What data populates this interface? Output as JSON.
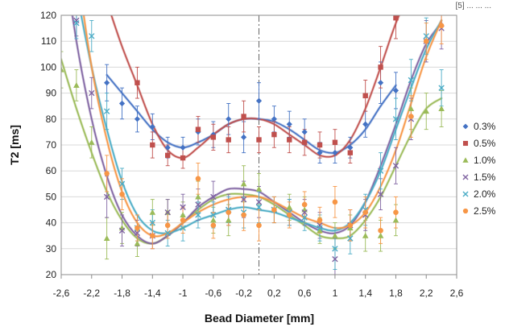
{
  "header_fragment": "[5] ... ... ...",
  "chart_data": {
    "type": "scatter",
    "title": "",
    "xlabel": "Bead Diameter [mm]",
    "ylabel": "T2 [ms]",
    "xlim": [
      -2.6,
      2.6
    ],
    "ylim": [
      20,
      120
    ],
    "x_ticks": [
      "-2,6",
      "-2,2",
      "-1,8",
      "-1,4",
      "-1",
      "-0,6",
      "-0,2",
      "0,2",
      "0,6",
      "1",
      "1,4",
      "1,8",
      "2,2",
      "2,6"
    ],
    "y_ticks": [
      "20",
      "30",
      "40",
      "50",
      "60",
      "70",
      "80",
      "90",
      "100",
      "110",
      "120"
    ],
    "grid": true,
    "center_line_x": 0,
    "legend_position": "right",
    "series": [
      {
        "name": "0.3%",
        "color": "#4472C4",
        "marker": "diamond",
        "points": [
          [
            -2.0,
            94,
            7
          ],
          [
            -1.8,
            86,
            6
          ],
          [
            -1.6,
            80,
            5
          ],
          [
            -1.4,
            77,
            5
          ],
          [
            -1.2,
            69,
            4
          ],
          [
            -1.0,
            69,
            4
          ],
          [
            -0.8,
            75,
            5
          ],
          [
            -0.6,
            74,
            5
          ],
          [
            -0.4,
            80,
            6
          ],
          [
            -0.2,
            73,
            6
          ],
          [
            0.0,
            87,
            7
          ],
          [
            0.2,
            80,
            5
          ],
          [
            0.4,
            78,
            5
          ],
          [
            0.6,
            75,
            5
          ],
          [
            0.8,
            67,
            4
          ],
          [
            1.0,
            67,
            4
          ],
          [
            1.2,
            69,
            4
          ],
          [
            1.4,
            78,
            5
          ],
          [
            1.6,
            94,
            8
          ],
          [
            1.8,
            91,
            7
          ]
        ],
        "fit": [
          [
            -2.0,
            97
          ],
          [
            -1.8,
            90
          ],
          [
            -1.6,
            83
          ],
          [
            -1.4,
            76
          ],
          [
            -1.2,
            71
          ],
          [
            -1.0,
            69
          ],
          [
            -0.8,
            71
          ],
          [
            -0.6,
            74
          ],
          [
            -0.4,
            78
          ],
          [
            -0.2,
            80
          ],
          [
            0.0,
            80
          ],
          [
            0.2,
            79
          ],
          [
            0.4,
            76
          ],
          [
            0.6,
            72
          ],
          [
            0.8,
            68
          ],
          [
            1.0,
            67
          ],
          [
            1.2,
            70
          ],
          [
            1.4,
            76
          ],
          [
            1.6,
            85
          ],
          [
            1.8,
            93
          ]
        ]
      },
      {
        "name": "0.5%",
        "color": "#C0504D",
        "marker": "square",
        "points": [
          [
            -1.6,
            94,
            6
          ],
          [
            -1.4,
            70,
            5
          ],
          [
            -1.2,
            66,
            4
          ],
          [
            -1.0,
            65,
            4
          ],
          [
            -0.8,
            76,
            5
          ],
          [
            -0.6,
            73,
            5
          ],
          [
            -0.4,
            72,
            5
          ],
          [
            -0.2,
            81,
            6
          ],
          [
            0.0,
            72,
            5
          ],
          [
            0.2,
            74,
            5
          ],
          [
            0.4,
            72,
            5
          ],
          [
            0.6,
            71,
            5
          ],
          [
            0.8,
            70,
            5
          ],
          [
            1.0,
            71,
            5
          ],
          [
            1.2,
            67,
            4
          ],
          [
            1.4,
            89,
            6
          ],
          [
            1.6,
            100,
            8
          ],
          [
            1.8,
            119,
            8
          ]
        ],
        "fit": [
          [
            -2.2,
            140
          ],
          [
            -2.0,
            125
          ],
          [
            -1.8,
            108
          ],
          [
            -1.6,
            93
          ],
          [
            -1.4,
            78
          ],
          [
            -1.2,
            68
          ],
          [
            -1.0,
            65
          ],
          [
            -0.8,
            69
          ],
          [
            -0.6,
            74
          ],
          [
            -0.4,
            78
          ],
          [
            -0.2,
            80
          ],
          [
            0.0,
            80
          ],
          [
            0.2,
            78
          ],
          [
            0.4,
            74
          ],
          [
            0.6,
            70
          ],
          [
            0.8,
            66
          ],
          [
            1.0,
            66
          ],
          [
            1.2,
            72
          ],
          [
            1.4,
            84
          ],
          [
            1.6,
            100
          ],
          [
            1.8,
            117
          ],
          [
            2.0,
            130
          ]
        ]
      },
      {
        "name": "1.0%",
        "color": "#9BBB59",
        "marker": "triangle",
        "points": [
          [
            -2.6,
            99,
            7
          ],
          [
            -2.4,
            93,
            6
          ],
          [
            -2.2,
            71,
            6
          ],
          [
            -2.0,
            34,
            8
          ],
          [
            -1.8,
            38,
            6
          ],
          [
            -1.6,
            32,
            5
          ],
          [
            -1.4,
            44,
            5
          ],
          [
            -1.2,
            44,
            5
          ],
          [
            -1.0,
            43,
            5
          ],
          [
            -0.8,
            50,
            6
          ],
          [
            -0.6,
            41,
            5
          ],
          [
            -0.4,
            41,
            6
          ],
          [
            -0.2,
            55,
            7
          ],
          [
            0.0,
            53,
            6
          ],
          [
            0.2,
            45,
            5
          ],
          [
            0.4,
            46,
            5
          ],
          [
            0.6,
            45,
            5
          ],
          [
            0.8,
            37,
            5
          ],
          [
            1.0,
            35,
            5
          ],
          [
            1.2,
            38,
            5
          ],
          [
            1.4,
            35,
            6
          ],
          [
            1.6,
            35,
            6
          ],
          [
            1.8,
            41,
            6
          ],
          [
            2.0,
            84,
            8
          ],
          [
            2.2,
            83,
            7
          ],
          [
            2.4,
            84,
            7
          ]
        ],
        "fit": [
          [
            -2.6,
            103
          ],
          [
            -2.4,
            84
          ],
          [
            -2.2,
            67
          ],
          [
            -2.0,
            52
          ],
          [
            -1.8,
            41
          ],
          [
            -1.6,
            34
          ],
          [
            -1.4,
            32
          ],
          [
            -1.2,
            35
          ],
          [
            -1.0,
            40
          ],
          [
            -0.8,
            45
          ],
          [
            -0.6,
            49
          ],
          [
            -0.4,
            51
          ],
          [
            -0.2,
            51
          ],
          [
            0.0,
            50
          ],
          [
            0.2,
            47
          ],
          [
            0.4,
            43
          ],
          [
            0.6,
            39
          ],
          [
            0.8,
            35
          ],
          [
            1.0,
            34
          ],
          [
            1.2,
            35
          ],
          [
            1.4,
            41
          ],
          [
            1.6,
            50
          ],
          [
            1.8,
            62
          ],
          [
            2.0,
            74
          ],
          [
            2.2,
            84
          ],
          [
            2.4,
            88
          ]
        ]
      },
      {
        "name": "1.5%",
        "color": "#8064A2",
        "marker": "x",
        "points": [
          [
            -2.4,
            118,
            6
          ],
          [
            -2.2,
            90,
            6
          ],
          [
            -2.0,
            50,
            8
          ],
          [
            -1.8,
            37,
            6
          ],
          [
            -1.6,
            36,
            5
          ],
          [
            -1.4,
            35,
            5
          ],
          [
            -1.2,
            44,
            5
          ],
          [
            -1.0,
            46,
            5
          ],
          [
            -0.8,
            47,
            6
          ],
          [
            -0.6,
            50,
            6
          ],
          [
            -0.4,
            45,
            6
          ],
          [
            -0.2,
            49,
            7
          ],
          [
            0.0,
            48,
            6
          ],
          [
            0.2,
            45,
            5
          ],
          [
            0.4,
            44,
            5
          ],
          [
            0.6,
            44,
            5
          ],
          [
            0.8,
            39,
            5
          ],
          [
            1.0,
            26,
            8
          ],
          [
            1.2,
            39,
            6
          ],
          [
            1.4,
            43,
            6
          ],
          [
            1.6,
            51,
            6
          ],
          [
            1.8,
            62,
            7
          ],
          [
            2.0,
            80,
            8
          ],
          [
            2.2,
            110,
            8
          ],
          [
            2.4,
            115,
            8
          ]
        ],
        "fit": [
          [
            -2.6,
            150
          ],
          [
            -2.4,
            110
          ],
          [
            -2.2,
            80
          ],
          [
            -2.0,
            58
          ],
          [
            -1.8,
            43
          ],
          [
            -1.6,
            35
          ],
          [
            -1.4,
            32
          ],
          [
            -1.2,
            35
          ],
          [
            -1.0,
            40
          ],
          [
            -0.8,
            46
          ],
          [
            -0.6,
            50
          ],
          [
            -0.4,
            53
          ],
          [
            -0.2,
            53
          ],
          [
            0.0,
            52
          ],
          [
            0.2,
            48
          ],
          [
            0.4,
            44
          ],
          [
            0.6,
            40
          ],
          [
            0.8,
            37
          ],
          [
            1.0,
            36
          ],
          [
            1.2,
            39
          ],
          [
            1.4,
            48
          ],
          [
            1.6,
            62
          ],
          [
            1.8,
            78
          ],
          [
            2.0,
            95
          ],
          [
            2.2,
            109
          ],
          [
            2.4,
            117
          ]
        ]
      },
      {
        "name": "2.0%",
        "color": "#4BACC6",
        "marker": "x",
        "points": [
          [
            -2.4,
            117,
            6
          ],
          [
            -2.2,
            112,
            6
          ],
          [
            -2.0,
            83,
            7
          ],
          [
            -1.8,
            55,
            6
          ],
          [
            -1.6,
            38,
            5
          ],
          [
            -1.4,
            40,
            5
          ],
          [
            -1.2,
            36,
            5
          ],
          [
            -1.0,
            38,
            5
          ],
          [
            -0.8,
            43,
            5
          ],
          [
            -0.6,
            43,
            5
          ],
          [
            -0.4,
            45,
            5
          ],
          [
            -0.2,
            44,
            6
          ],
          [
            0.0,
            46,
            6
          ],
          [
            0.2,
            45,
            5
          ],
          [
            0.4,
            44,
            5
          ],
          [
            0.6,
            42,
            5
          ],
          [
            0.8,
            38,
            5
          ],
          [
            1.0,
            30,
            8
          ],
          [
            1.2,
            34,
            6
          ],
          [
            1.4,
            45,
            6
          ],
          [
            1.6,
            60,
            7
          ],
          [
            1.8,
            80,
            8
          ],
          [
            2.0,
            95,
            8
          ],
          [
            2.2,
            112,
            7
          ],
          [
            2.4,
            92,
            7
          ]
        ],
        "fit": [
          [
            -2.6,
            165
          ],
          [
            -2.4,
            130
          ],
          [
            -2.2,
            100
          ],
          [
            -2.0,
            76
          ],
          [
            -1.8,
            56
          ],
          [
            -1.6,
            43
          ],
          [
            -1.4,
            37
          ],
          [
            -1.2,
            36
          ],
          [
            -1.0,
            38
          ],
          [
            -0.8,
            41
          ],
          [
            -0.6,
            43
          ],
          [
            -0.4,
            45
          ],
          [
            -0.2,
            46
          ],
          [
            0.0,
            45
          ],
          [
            0.2,
            44
          ],
          [
            0.4,
            42
          ],
          [
            0.6,
            40
          ],
          [
            0.8,
            38
          ],
          [
            1.0,
            37
          ],
          [
            1.2,
            40
          ],
          [
            1.4,
            48
          ],
          [
            1.6,
            60
          ],
          [
            1.8,
            76
          ],
          [
            2.0,
            92
          ],
          [
            2.2,
            107
          ],
          [
            2.4,
            118
          ]
        ]
      },
      {
        "name": "2.5%",
        "color": "#F79646",
        "marker": "circle",
        "points": [
          [
            -2.0,
            59,
            7
          ],
          [
            -1.8,
            51,
            6
          ],
          [
            -1.6,
            38,
            5
          ],
          [
            -1.4,
            35,
            5
          ],
          [
            -1.2,
            39,
            5
          ],
          [
            -1.0,
            41,
            5
          ],
          [
            -0.8,
            57,
            6
          ],
          [
            -0.6,
            39,
            5
          ],
          [
            -0.4,
            44,
            5
          ],
          [
            -0.2,
            43,
            6
          ],
          [
            0.0,
            39,
            6
          ],
          [
            0.2,
            45,
            5
          ],
          [
            0.4,
            43,
            5
          ],
          [
            0.6,
            47,
            5
          ],
          [
            0.8,
            41,
            5
          ],
          [
            1.0,
            48,
            6
          ],
          [
            1.2,
            39,
            6
          ],
          [
            1.4,
            44,
            6
          ],
          [
            1.6,
            37,
            5
          ],
          [
            1.8,
            44,
            6
          ],
          [
            2.0,
            81,
            8
          ],
          [
            2.2,
            110,
            7
          ],
          [
            2.4,
            116,
            7
          ]
        ],
        "fit": [
          [
            -2.4,
            140
          ],
          [
            -2.2,
            100
          ],
          [
            -2.0,
            72
          ],
          [
            -1.8,
            52
          ],
          [
            -1.6,
            40
          ],
          [
            -1.4,
            35
          ],
          [
            -1.2,
            36
          ],
          [
            -1.0,
            40
          ],
          [
            -0.8,
            44
          ],
          [
            -0.6,
            47
          ],
          [
            -0.4,
            49
          ],
          [
            -0.2,
            50
          ],
          [
            0.0,
            50
          ],
          [
            0.2,
            48
          ],
          [
            0.4,
            45
          ],
          [
            0.6,
            42
          ],
          [
            0.8,
            40
          ],
          [
            1.0,
            38
          ],
          [
            1.2,
            39
          ],
          [
            1.4,
            44
          ],
          [
            1.6,
            54
          ],
          [
            1.8,
            68
          ],
          [
            2.0,
            86
          ],
          [
            2.2,
            104
          ],
          [
            2.4,
            118
          ]
        ]
      }
    ]
  }
}
